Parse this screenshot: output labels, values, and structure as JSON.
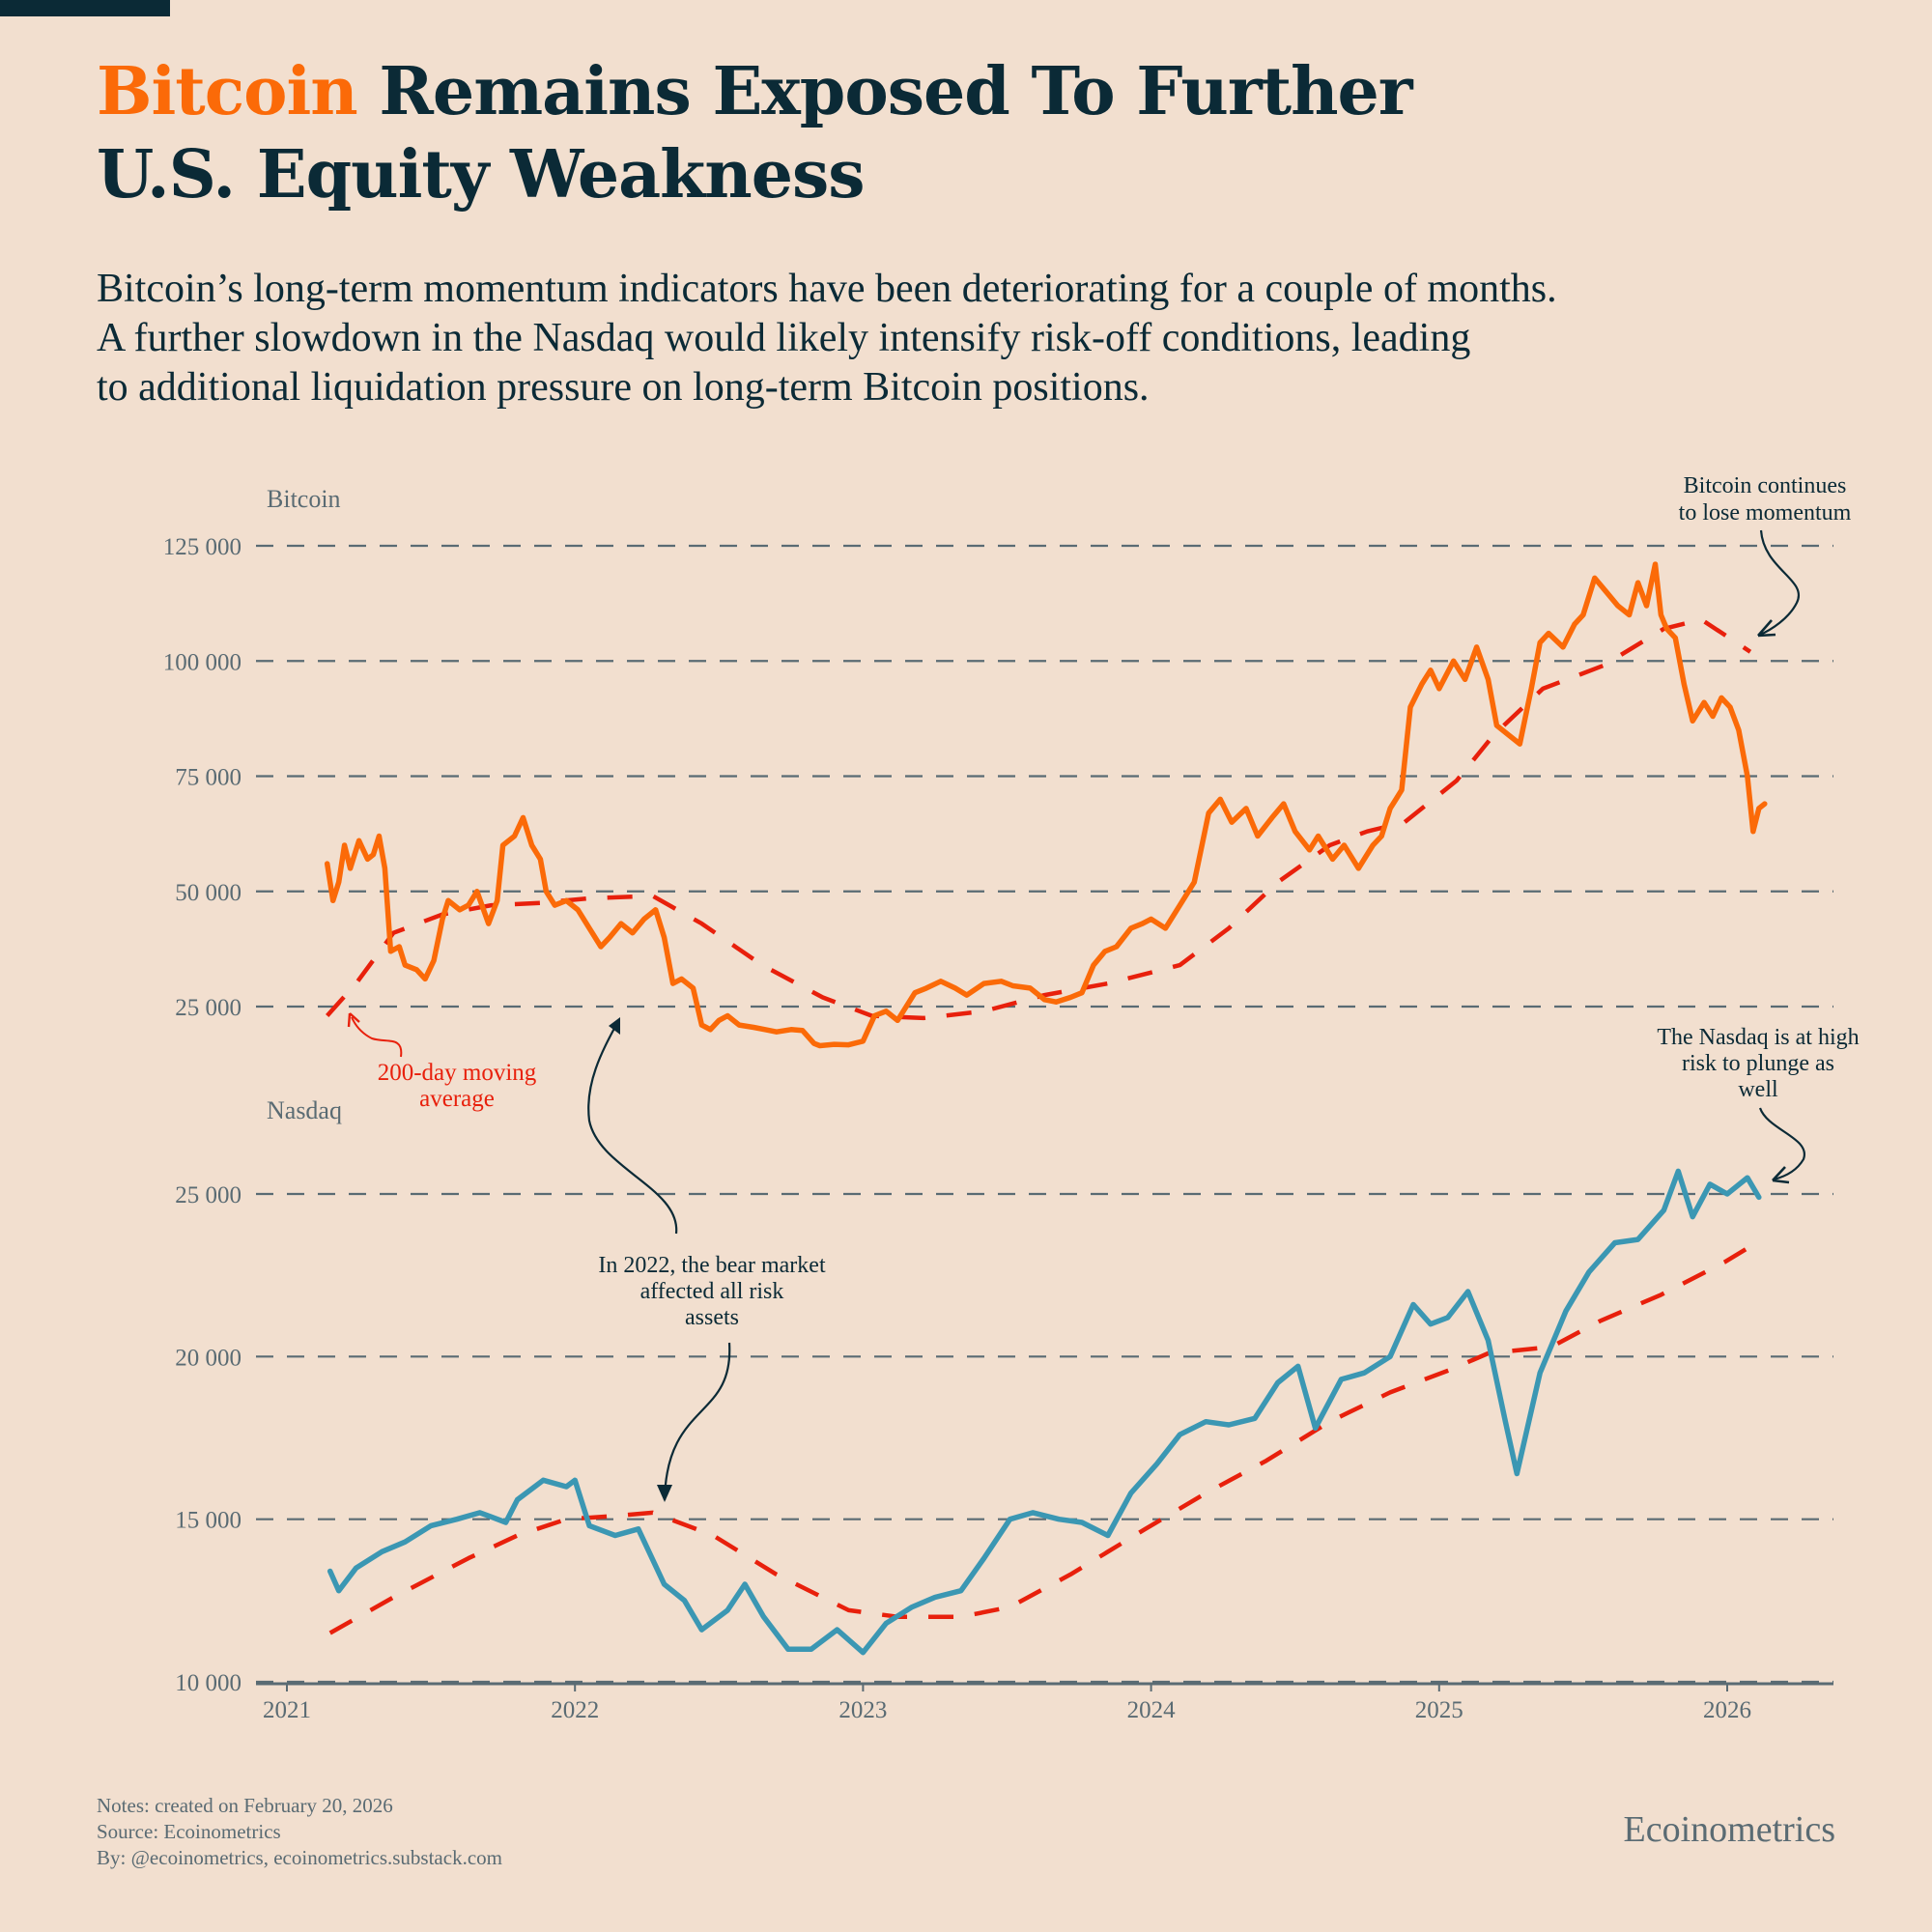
{
  "title": {
    "accent": "Bitcoin",
    "rest_line1": " Remains Exposed To Further",
    "line2": "U.S. Equity Weakness"
  },
  "subtitle": [
    "Bitcoin’s long-term momentum indicators have been deteriorating for a couple of months.",
    "A further slowdown in the Nasdaq would likely intensify risk-off conditions, leading",
    "to additional liquidation pressure on long-term Bitcoin positions."
  ],
  "colors": {
    "background": "#f2dfcf",
    "title": "#0b2a36",
    "accent": "#fb6a08",
    "bitcoin": "#fb6a08",
    "nasdaq": "#3b97b3",
    "moving_average": "#e8200c",
    "grid": "#5a6b73",
    "axis_text": "#5a6b73"
  },
  "footer": {
    "notes": "Notes: created on February 20, 2026",
    "source": "Source: Ecoinometrics",
    "by": "By: @ecoinometrics, ecoinometrics.substack.com",
    "brand": "Ecoinometrics"
  },
  "chart_data": [
    {
      "type": "line",
      "title": "Bitcoin",
      "xlabel": "",
      "ylabel": "",
      "ylim": [
        25000,
        125000
      ],
      "yticks": [
        25000,
        50000,
        75000,
        100000,
        125000
      ],
      "ytick_labels": [
        "25 000",
        "50 000",
        "75 000",
        "100 000",
        "125 000"
      ],
      "xlim": [
        2021,
        2026.4
      ],
      "xticks": [
        2021,
        2022,
        2023,
        2024,
        2025,
        2026
      ],
      "xtick_labels": [
        "2021",
        "2022",
        "2023",
        "2024",
        "2025",
        "2026"
      ],
      "grid": true,
      "series": [
        {
          "name": "Bitcoin",
          "x": [
            2021.14,
            2021.16,
            2021.18,
            2021.2,
            2021.22,
            2021.25,
            2021.28,
            2021.3,
            2021.32,
            2021.34,
            2021.36,
            2021.39,
            2021.41,
            2021.45,
            2021.48,
            2021.51,
            2021.54,
            2021.56,
            2021.6,
            2021.63,
            2021.66,
            2021.7,
            2021.73,
            2021.75,
            2021.79,
            2021.82,
            2021.85,
            2021.88,
            2021.9,
            2021.93,
            2021.97,
            2022.01,
            2022.05,
            2022.09,
            2022.12,
            2022.16,
            2022.2,
            2022.24,
            2022.28,
            2022.31,
            2022.34,
            2022.37,
            2022.41,
            2022.44,
            2022.47,
            2022.5,
            2022.53,
            2022.57,
            2022.62,
            2022.66,
            2022.7,
            2022.75,
            2022.79,
            2022.83,
            2022.85,
            2022.9,
            2022.95,
            2023.0,
            2023.04,
            2023.08,
            2023.12,
            2023.18,
            2023.22,
            2023.27,
            2023.32,
            2023.36,
            2023.42,
            2023.48,
            2023.52,
            2023.58,
            2023.63,
            2023.67,
            2023.72,
            2023.76,
            2023.8,
            2023.84,
            2023.88,
            2023.93,
            2023.97,
            2024.0,
            2024.05,
            2024.1,
            2024.15,
            2024.2,
            2024.24,
            2024.28,
            2024.33,
            2024.37,
            2024.42,
            2024.46,
            2024.5,
            2024.55,
            2024.58,
            2024.63,
            2024.67,
            2024.72,
            2024.77,
            2024.8,
            2024.83,
            2024.85,
            2024.87,
            2024.9,
            2024.94,
            2024.97,
            2025.0,
            2025.05,
            2025.09,
            2025.13,
            2025.17,
            2025.2,
            2025.24,
            2025.28,
            2025.32,
            2025.35,
            2025.38,
            2025.43,
            2025.47,
            2025.5,
            2025.54,
            2025.58,
            2025.62,
            2025.66,
            2025.69,
            2025.72,
            2025.75,
            2025.77,
            2025.79,
            2025.82,
            2025.85,
            2025.88,
            2025.92,
            2025.95,
            2025.98,
            2026.01,
            2026.04,
            2026.07,
            2026.09,
            2026.11,
            2026.13
          ],
          "y": [
            56000,
            48000,
            52000,
            60000,
            55000,
            61000,
            57000,
            58000,
            62000,
            55000,
            37000,
            38000,
            34000,
            33000,
            31000,
            35000,
            44000,
            48000,
            46000,
            47000,
            50000,
            43000,
            48000,
            60000,
            62000,
            66000,
            60000,
            57000,
            50000,
            47000,
            48000,
            46000,
            42000,
            38000,
            40000,
            43000,
            41000,
            44000,
            46000,
            40000,
            30000,
            31000,
            29000,
            21000,
            20000,
            22000,
            23000,
            21000,
            20500,
            20000,
            19500,
            20000,
            19800,
            17000,
            16500,
            16800,
            16700,
            17500,
            23000,
            24000,
            22000,
            28000,
            29000,
            30500,
            29000,
            27500,
            30000,
            30500,
            29500,
            29000,
            26500,
            26000,
            27000,
            28000,
            34000,
            37000,
            38000,
            42000,
            43000,
            44000,
            42000,
            47000,
            52000,
            67000,
            70000,
            65000,
            68000,
            62000,
            66000,
            69000,
            63000,
            59000,
            62000,
            57000,
            60000,
            55000,
            60000,
            62000,
            68000,
            70000,
            72000,
            90000,
            95000,
            98000,
            94000,
            100000,
            96000,
            103000,
            96000,
            86000,
            84000,
            82000,
            94000,
            104000,
            106000,
            103000,
            108000,
            110000,
            118000,
            115000,
            112000,
            110000,
            117000,
            112000,
            121000,
            110000,
            107000,
            105000,
            95000,
            87000,
            91000,
            88000,
            92000,
            90000,
            85000,
            75000,
            63000,
            68000,
            69000
          ]
        },
        {
          "name": "200-day moving average",
          "style": "dashed",
          "x": [
            2021.14,
            2021.24,
            2021.37,
            2021.54,
            2021.71,
            2021.88,
            2022.05,
            2022.27,
            2022.44,
            2022.65,
            2022.86,
            2023.03,
            2023.21,
            2023.42,
            2023.63,
            2023.85,
            2024.1,
            2024.27,
            2024.44,
            2024.62,
            2024.75,
            2024.88,
            2025.06,
            2025.19,
            2025.36,
            2025.57,
            2025.78,
            2025.91,
            2026.08
          ],
          "y": [
            23000,
            30000,
            41000,
            45000,
            47000,
            47500,
            48500,
            49000,
            43000,
            34000,
            27000,
            23000,
            22500,
            24000,
            27500,
            30000,
            34000,
            42000,
            52000,
            60000,
            63000,
            65000,
            74000,
            84000,
            94000,
            99000,
            107000,
            109000,
            102000
          ]
        }
      ],
      "annotations": [
        {
          "text": "Bitcoin continues to lose momentum",
          "points_to": [
            2026.07,
            103000
          ]
        },
        {
          "text": "200-day moving average",
          "points_to": [
            2021.2,
            24000
          ]
        }
      ]
    },
    {
      "type": "line",
      "title": "Nasdaq",
      "xlabel": "",
      "ylabel": "",
      "ylim": [
        10000,
        25000
      ],
      "yticks": [
        10000,
        15000,
        20000,
        25000
      ],
      "ytick_labels": [
        "10 000",
        "15 000",
        "20 000",
        "25 000"
      ],
      "xlim": [
        2021,
        2026.4
      ],
      "xticks": [
        2021,
        2022,
        2023,
        2024,
        2025,
        2026
      ],
      "xtick_labels": [
        "2021",
        "2022",
        "2023",
        "2024",
        "2025",
        "2026"
      ],
      "grid": true,
      "series": [
        {
          "name": "Nasdaq",
          "x": [
            2021.15,
            2021.18,
            2021.24,
            2021.33,
            2021.41,
            2021.5,
            2021.59,
            2021.67,
            2021.76,
            2021.8,
            2021.89,
            2021.97,
            2022.0,
            2022.05,
            2022.14,
            2022.22,
            2022.31,
            2022.38,
            2022.44,
            2022.53,
            2022.59,
            2022.655,
            2022.74,
            2022.82,
            2022.91,
            2023.0,
            2023.08,
            2023.17,
            2023.25,
            2023.34,
            2023.42,
            2023.51,
            2023.59,
            2023.68,
            2023.76,
            2023.85,
            2023.93,
            2024.02,
            2024.1,
            2024.19,
            2024.27,
            2024.36,
            2024.44,
            2024.51,
            2024.57,
            2024.66,
            2024.74,
            2024.83,
            2024.91,
            2024.97,
            2025.03,
            2025.1,
            2025.17,
            2025.23,
            2025.27,
            2025.35,
            2025.44,
            2025.52,
            2025.61,
            2025.69,
            2025.78,
            2025.83,
            2025.88,
            2025.94,
            2026.0,
            2026.07,
            2026.11
          ],
          "y": [
            13400,
            12800,
            13500,
            14000,
            14300,
            14800,
            15000,
            15200,
            14900,
            15600,
            16200,
            16000,
            16200,
            14800,
            14500,
            14700,
            13000,
            12500,
            11600,
            12200,
            13000,
            12000,
            11000,
            11000,
            11600,
            10900,
            11800,
            12300,
            12600,
            12800,
            13800,
            15000,
            15200,
            15000,
            14900,
            14500,
            15800,
            16700,
            17600,
            18000,
            17900,
            18100,
            19200,
            19700,
            17800,
            19300,
            19500,
            20000,
            21600,
            21000,
            21200,
            22000,
            20500,
            18000,
            16400,
            19500,
            21400,
            22600,
            23500,
            23600,
            24500,
            25700,
            24300,
            25300,
            25000,
            25500,
            24900
          ]
        },
        {
          "name": "200-day moving average",
          "style": "dashed",
          "x": [
            2021.15,
            2021.37,
            2021.63,
            2021.8,
            2021.97,
            2022.14,
            2022.27,
            2022.48,
            2022.7,
            2022.95,
            2023.12,
            2023.34,
            2023.51,
            2023.72,
            2023.98,
            2024.19,
            2024.4,
            2024.62,
            2024.83,
            2025.04,
            2025.17,
            2025.39,
            2025.56,
            2025.77,
            2025.99,
            2026.12
          ],
          "y": [
            11500,
            12600,
            13800,
            14500,
            15000,
            15100,
            15200,
            14500,
            13300,
            12200,
            12000,
            12000,
            12300,
            13300,
            14700,
            15800,
            16800,
            18000,
            18900,
            19600,
            20100,
            20300,
            21100,
            21900,
            22900,
            23600
          ]
        }
      ],
      "annotations": [
        {
          "text": "The Nasdaq is at high risk to plunge as well",
          "points_to": [
            2026.12,
            25100
          ]
        },
        {
          "text": "In 2022, the bear market affected all risk assets",
          "points_to": [
            2022.3,
            15200
          ]
        }
      ]
    }
  ],
  "labels": {
    "bitcoin_panel": "Bitcoin",
    "nasdaq_panel": "Nasdaq",
    "ann_btc": [
      "Bitcoin continues",
      "to lose momentum"
    ],
    "ann_ma": [
      "200-day moving",
      "average"
    ],
    "ann_nasdaq": [
      "The Nasdaq is at high",
      "risk to plunge as",
      "well"
    ],
    "ann_2022": [
      "In 2022, the bear market",
      "affected all risk",
      "assets"
    ]
  }
}
